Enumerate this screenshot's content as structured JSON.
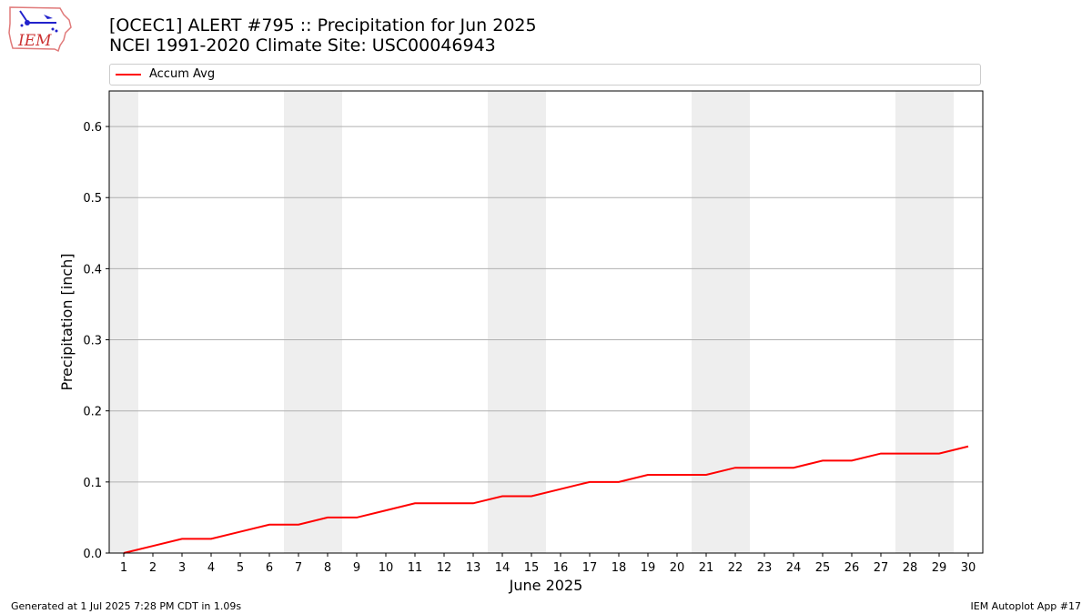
{
  "header": {
    "title_line1": "[OCEC1] ALERT #795 :: Precipitation for Jun 2025",
    "title_line2": "NCEI 1991-2020 Climate Site: USC00046943"
  },
  "logo": {
    "text": "IEM",
    "icon": "iem-iowa-logo-icon"
  },
  "footer": {
    "left": "Generated at 1 Jul 2025 7:28 PM CDT in 1.09s",
    "right": "IEM Autoplot App #17"
  },
  "colors": {
    "series": "#ff0000",
    "weekend_band": "#eeeeee",
    "grid": "#b0b0b0"
  },
  "chart_data": {
    "type": "line",
    "title": "[OCEC1] ALERT #795 :: Precipitation for Jun 2025\nNCEI 1991-2020 Climate Site: USC00046943",
    "xlabel": "June 2025",
    "ylabel": "Precipitation [inch]",
    "x": [
      1,
      2,
      3,
      4,
      5,
      6,
      7,
      8,
      9,
      10,
      11,
      12,
      13,
      14,
      15,
      16,
      17,
      18,
      19,
      20,
      21,
      22,
      23,
      24,
      25,
      26,
      27,
      28,
      29,
      30
    ],
    "xlim": [
      0.5,
      30.5
    ],
    "ylim": [
      0,
      0.65
    ],
    "yticks": [
      0.0,
      0.1,
      0.2,
      0.3,
      0.4,
      0.5,
      0.6
    ],
    "ytick_labels": [
      "0.0",
      "0.1",
      "0.2",
      "0.3",
      "0.4",
      "0.5",
      "0.6"
    ],
    "grid": "horizontal",
    "legend_placement": "top",
    "weekend_days": [
      1,
      7,
      8,
      14,
      15,
      21,
      22,
      28,
      29
    ],
    "series": [
      {
        "name": "Accum Avg",
        "color": "#ff0000",
        "values": [
          0.0,
          0.01,
          0.02,
          0.02,
          0.03,
          0.04,
          0.04,
          0.05,
          0.05,
          0.06,
          0.07,
          0.07,
          0.07,
          0.08,
          0.08,
          0.09,
          0.1,
          0.1,
          0.11,
          0.11,
          0.11,
          0.12,
          0.12,
          0.12,
          0.13,
          0.13,
          0.14,
          0.14,
          0.14,
          0.15
        ]
      }
    ]
  }
}
